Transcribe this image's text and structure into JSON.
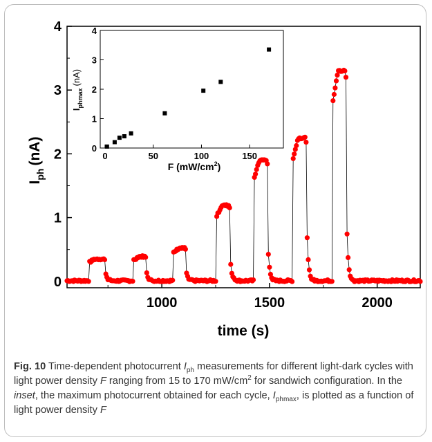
{
  "main_chart": {
    "xlabel": "time (s)",
    "ylabel_main": "I",
    "ylabel_sub": "ph",
    "ylabel_unit": "(nA)",
    "xlim": [
      560,
      2200
    ],
    "ylim": [
      -0.1,
      4.0
    ],
    "x_ticks": [
      "1000",
      "1500",
      "2000"
    ],
    "y_ticks": [
      "0",
      "1",
      "2",
      "3",
      "4"
    ]
  },
  "inset": {
    "xlabel": "F (mW/cm",
    "xlabel_sup": "2",
    "xlabel_close": ")",
    "ylabel_main": "I",
    "ylabel_sub": "phmax",
    "ylabel_unit": "(nA)",
    "xlim": [
      -5,
      185
    ],
    "ylim": [
      0,
      4
    ],
    "x_ticks": [
      "0",
      "50",
      "100",
      "150"
    ],
    "y_ticks": [
      "0",
      "1",
      "2",
      "3",
      "4"
    ]
  },
  "chart_data": [
    {
      "type": "scatter",
      "description_free": true,
      "x_label": "time (s)",
      "y_label": "Iph (nA)",
      "marker_color": "#ff0000",
      "cycles": [
        {
          "on": 665,
          "off": 738,
          "level": 0.35
        },
        {
          "on": 870,
          "off": 928,
          "level": 0.39
        },
        {
          "on": 1055,
          "off": 1110,
          "level": 0.52
        },
        {
          "on": 1255,
          "off": 1315,
          "level": 1.19
        },
        {
          "on": 1430,
          "off": 1490,
          "level": 1.9
        },
        {
          "on": 1610,
          "off": 1672,
          "level": 2.25
        },
        {
          "on": 1795,
          "off": 1855,
          "level": 3.3
        }
      ]
    },
    {
      "type": "scatter",
      "x_label": "F (mW/cm2)",
      "y_label": "Iphmax (nA)",
      "marker_color": "#000000",
      "points": [
        {
          "x": 2,
          "y": 0.05
        },
        {
          "x": 10,
          "y": 0.2
        },
        {
          "x": 15,
          "y": 0.35
        },
        {
          "x": 20,
          "y": 0.4
        },
        {
          "x": 27,
          "y": 0.5
        },
        {
          "x": 62,
          "y": 1.18
        },
        {
          "x": 102,
          "y": 1.95
        },
        {
          "x": 120,
          "y": 2.25
        },
        {
          "x": 170,
          "y": 3.35
        }
      ]
    }
  ],
  "caption": {
    "label": "Fig. 10",
    "line1": " Time-dependent photocurrent ",
    "iph_main": "I",
    "iph_sub": "ph",
    "line1b": " measurements for different light-dark cycles with light power density ",
    "F1": "F",
    "line1c": " ranging from 15 to 170 mW/cm",
    "sup2": "2",
    "line1d": " for sandwich configuration. In the ",
    "inset_word": "inset",
    "line1e": ", the maximum photocurrent obtained for each cycle, ",
    "imax_main": "I",
    "imax_sub": "phmax",
    "line1f": ", is plotted as a function of light power density ",
    "F2": "F"
  }
}
